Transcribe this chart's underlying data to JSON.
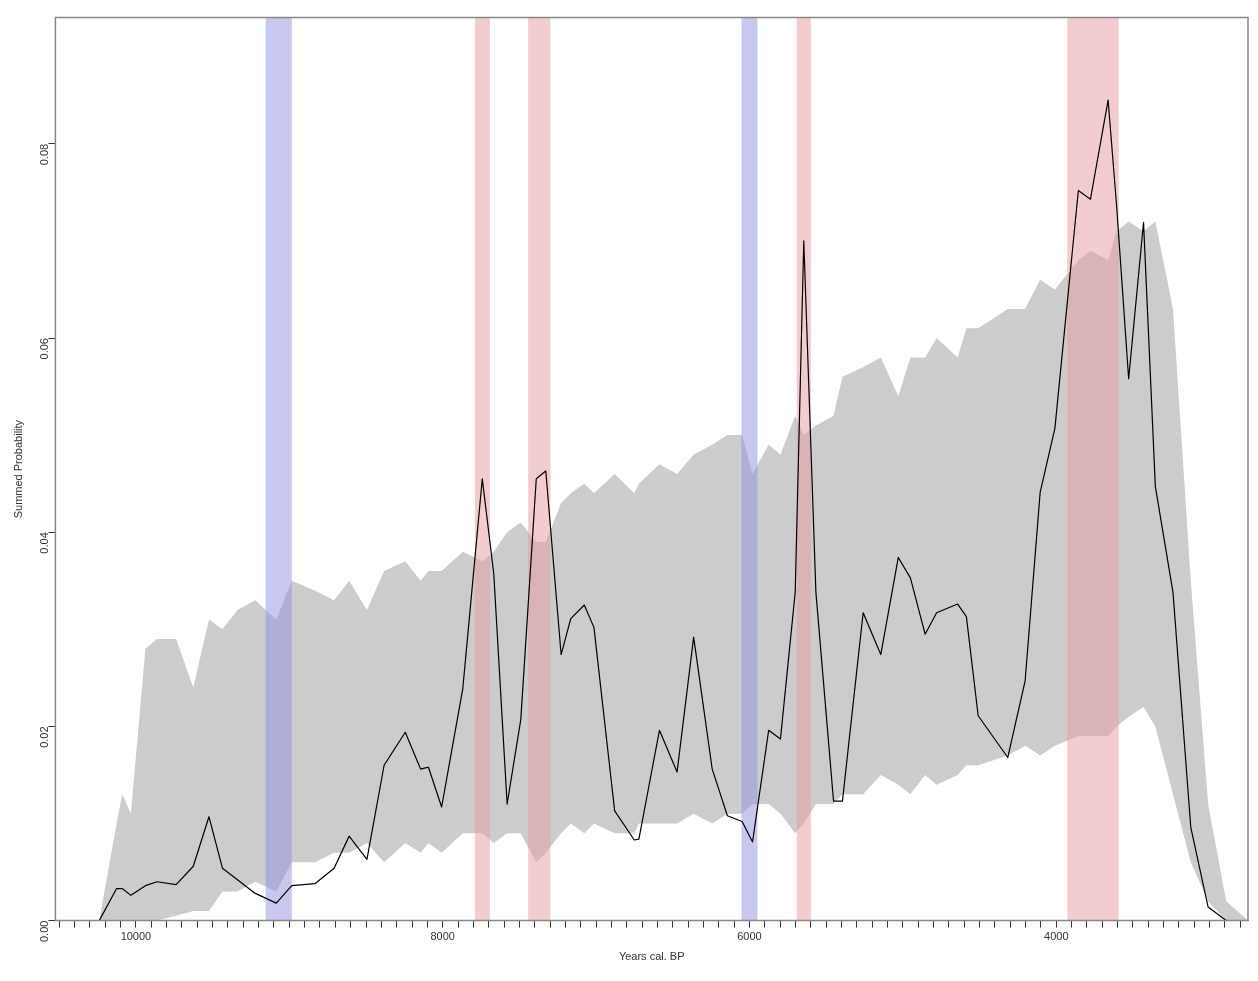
{
  "chart_data": {
    "type": "line",
    "xlabel": "Years cal. BP",
    "ylabel": "Summed Probability",
    "xlim": [
      10525,
      2750
    ],
    "ylim": [
      0,
      0.093
    ],
    "xticks": [
      {
        "value": 10500,
        "label": null
      },
      {
        "value": 10400,
        "label": null
      },
      {
        "value": 10300,
        "label": null
      },
      {
        "value": 10200,
        "label": null
      },
      {
        "value": 10100,
        "label": null
      },
      10000,
      {
        "value": 9900,
        "label": null
      },
      {
        "value": 9800,
        "label": null
      },
      {
        "value": 9700,
        "label": null
      },
      {
        "value": 9600,
        "label": null
      },
      {
        "value": 9500,
        "label": null
      },
      {
        "value": 9400,
        "label": null
      },
      {
        "value": 9300,
        "label": null
      },
      {
        "value": 9200,
        "label": null
      },
      {
        "value": 9100,
        "label": null
      },
      {
        "value": 9000,
        "label": null
      },
      {
        "value": 8900,
        "label": null
      },
      {
        "value": 8800,
        "label": null
      },
      {
        "value": 8700,
        "label": null
      },
      {
        "value": 8600,
        "label": null
      },
      {
        "value": 8500,
        "label": null
      },
      {
        "value": 8400,
        "label": null
      },
      {
        "value": 8300,
        "label": null
      },
      {
        "value": 8200,
        "label": null
      },
      {
        "value": 8100,
        "label": null
      },
      8000,
      {
        "value": 7900,
        "label": null
      },
      {
        "value": 7800,
        "label": null
      },
      {
        "value": 7700,
        "label": null
      },
      {
        "value": 7600,
        "label": null
      },
      {
        "value": 7500,
        "label": null
      },
      {
        "value": 7400,
        "label": null
      },
      {
        "value": 7300,
        "label": null
      },
      {
        "value": 7200,
        "label": null
      },
      {
        "value": 7100,
        "label": null
      },
      {
        "value": 7000,
        "label": null
      },
      {
        "value": 6900,
        "label": null
      },
      {
        "value": 6800,
        "label": null
      },
      {
        "value": 6700,
        "label": null
      },
      {
        "value": 6600,
        "label": null
      },
      {
        "value": 6500,
        "label": null
      },
      {
        "value": 6400,
        "label": null
      },
      {
        "value": 6300,
        "label": null
      },
      {
        "value": 6200,
        "label": null
      },
      {
        "value": 6100,
        "label": null
      },
      6000,
      {
        "value": 5900,
        "label": null
      },
      {
        "value": 5800,
        "label": null
      },
      {
        "value": 5700,
        "label": null
      },
      {
        "value": 5600,
        "label": null
      },
      {
        "value": 5500,
        "label": null
      },
      {
        "value": 5400,
        "label": null
      },
      {
        "value": 5300,
        "label": null
      },
      {
        "value": 5200,
        "label": null
      },
      {
        "value": 5100,
        "label": null
      },
      {
        "value": 5000,
        "label": null
      },
      {
        "value": 4900,
        "label": null
      },
      {
        "value": 4800,
        "label": null
      },
      {
        "value": 4700,
        "label": null
      },
      {
        "value": 4600,
        "label": null
      },
      {
        "value": 4500,
        "label": null
      },
      {
        "value": 4400,
        "label": null
      },
      {
        "value": 4300,
        "label": null
      },
      {
        "value": 4200,
        "label": null
      },
      {
        "value": 4100,
        "label": null
      },
      4000,
      {
        "value": 3900,
        "label": null
      },
      {
        "value": 3800,
        "label": null
      },
      {
        "value": 3700,
        "label": null
      },
      {
        "value": 3600,
        "label": null
      },
      {
        "value": 3500,
        "label": null
      },
      {
        "value": 3400,
        "label": null
      },
      {
        "value": 3300,
        "label": null
      },
      {
        "value": 3200,
        "label": null
      },
      {
        "value": 3100,
        "label": null
      },
      {
        "value": 3000,
        "label": null
      },
      {
        "value": 2900,
        "label": null
      },
      {
        "value": 2800,
        "label": null
      }
    ],
    "yticks": [
      {
        "value": 0,
        "label": "0.00"
      },
      {
        "value": 0.02,
        "label": "0.02"
      },
      {
        "value": 0.04,
        "label": "0.04"
      },
      {
        "value": 0.06,
        "label": "0.06"
      },
      {
        "value": 0.08,
        "label": "0.08"
      }
    ],
    "grid": false,
    "legend": false,
    "marker": "none",
    "line_style": "solid",
    "x": [
      10525,
      10239,
      10126,
      10089,
      10033,
      9938,
      9862,
      9738,
      9626,
      9524,
      9436,
      9338,
      9222,
      9085,
      8984,
      8833,
      8708,
      8610,
      8494,
      8382,
      8244,
      8144,
      8093,
      8007,
      7869,
      7742,
      7667,
      7580,
      7491,
      7390,
      7328,
      7228,
      7165,
      7077,
      7014,
      6879,
      6751,
      6721,
      6587,
      6472,
      6364,
      6243,
      6144,
      6048,
      5980,
      5875,
      5798,
      5702,
      5646,
      5567,
      5452,
      5394,
      5259,
      5144,
      5030,
      4951,
      4855,
      4780,
      4643,
      4586,
      4509,
      4316,
      4203,
      4105,
      4009,
      3856,
      3777,
      3662,
      3607,
      3528,
      3431,
      3354,
      3239,
      3123,
      3010,
      2892,
      2750
    ],
    "series": [
      {
        "color": "#000000",
        "values": [
          0,
          0,
          0.0033,
          0.0033,
          0.0026,
          0.0036,
          0.004,
          0.0037,
          0.0056,
          0.0107,
          0.0054,
          0.0042,
          0.0028,
          0.0018,
          0.0036,
          0.0038,
          0.0054,
          0.0087,
          0.0063,
          0.016,
          0.0194,
          0.0156,
          0.0158,
          0.0117,
          0.0239,
          0.0455,
          0.0357,
          0.012,
          0.0207,
          0.0455,
          0.0463,
          0.0274,
          0.0311,
          0.0325,
          0.0302,
          0.0113,
          0.0083,
          0.0084,
          0.0196,
          0.0153,
          0.0292,
          0.0156,
          0.0108,
          0.0102,
          0.0081,
          0.0196,
          0.0187,
          0.0338,
          0.07,
          0.0338,
          0.0123,
          0.0123,
          0.0317,
          0.0274,
          0.0374,
          0.0353,
          0.0295,
          0.0317,
          0.0326,
          0.0313,
          0.0211,
          0.0168,
          0.0247,
          0.0441,
          0.0507,
          0.0752,
          0.0743,
          0.0845,
          0.0737,
          0.0558,
          0.0719,
          0.0447,
          0.0338,
          0.0096,
          0.0014,
          0,
          0
        ],
        "lower": [
          0,
          0,
          0,
          0,
          0,
          0,
          0,
          0.0005,
          0.001,
          0.001,
          0.003,
          0.003,
          0.004,
          0.003,
          0.006,
          0.006,
          0.007,
          0.007,
          0.008,
          0.006,
          0.008,
          0.007,
          0.008,
          0.007,
          0.009,
          0.009,
          0.008,
          0.009,
          0.009,
          0.006,
          0.007,
          0.009,
          0.01,
          0.009,
          0.01,
          0.009,
          0.009,
          0.01,
          0.01,
          0.01,
          0.011,
          0.01,
          0.011,
          0.011,
          0.012,
          0.012,
          0.011,
          0.009,
          0.01,
          0.012,
          0.012,
          0.013,
          0.013,
          0.015,
          0.014,
          0.013,
          0.015,
          0.014,
          0.015,
          0.016,
          0.016,
          0.017,
          0.018,
          0.017,
          0.018,
          0.019,
          0.019,
          0.019,
          0.02,
          0.021,
          0.022,
          0.02,
          0.013,
          0.006,
          0.002,
          0,
          0
        ],
        "upper": [
          0,
          0,
          0.01,
          0.013,
          0.011,
          0.028,
          0.029,
          0.029,
          0.024,
          0.031,
          0.03,
          0.032,
          0.033,
          0.031,
          0.035,
          0.034,
          0.033,
          0.035,
          0.032,
          0.036,
          0.037,
          0.035,
          0.036,
          0.036,
          0.038,
          0.037,
          0.038,
          0.04,
          0.041,
          0.039,
          0.039,
          0.043,
          0.044,
          0.045,
          0.044,
          0.046,
          0.044,
          0.045,
          0.047,
          0.046,
          0.048,
          0.049,
          0.05,
          0.05,
          0.046,
          0.049,
          0.048,
          0.052,
          0.05,
          0.051,
          0.052,
          0.056,
          0.057,
          0.058,
          0.054,
          0.058,
          0.058,
          0.06,
          0.058,
          0.061,
          0.061,
          0.063,
          0.063,
          0.066,
          0.065,
          0.068,
          0.069,
          0.068,
          0.071,
          0.072,
          0.071,
          0.072,
          0.063,
          0.035,
          0.012,
          0.002,
          0
        ]
      }
    ],
    "bands": [
      {
        "axis": "x",
        "from": 9154,
        "to": 8984,
        "color": "#9090e0"
      },
      {
        "axis": "x",
        "from": 7790,
        "to": 7692,
        "color": "#e89aa0"
      },
      {
        "axis": "x",
        "from": 7443,
        "to": 7298,
        "color": "#e89aa0"
      },
      {
        "axis": "x",
        "from": 6052,
        "to": 5948,
        "color": "#9090e0"
      },
      {
        "axis": "x",
        "from": 5692,
        "to": 5600,
        "color": "#e89aa0"
      },
      {
        "axis": "x",
        "from": 3928,
        "to": 3593,
        "color": "#e89aa0"
      }
    ]
  }
}
